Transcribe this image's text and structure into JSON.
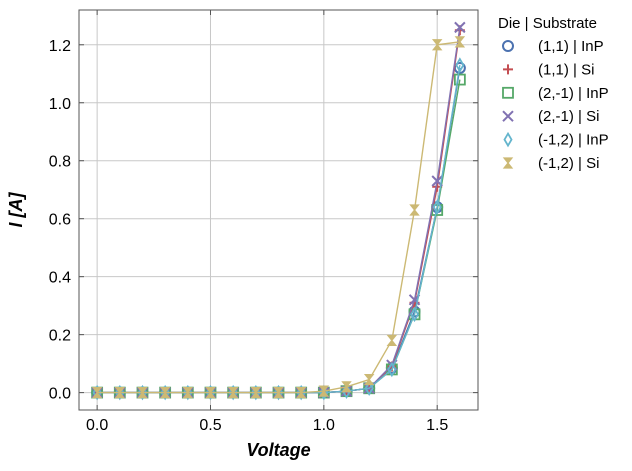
{
  "chart_data": {
    "type": "line",
    "title": "",
    "xlabel": "Voltage",
    "ylabel": "I [A]",
    "xlim": [
      -0.08,
      1.68
    ],
    "ylim": [
      -0.06,
      1.32
    ],
    "xticks": [
      0.0,
      0.5,
      1.0,
      1.5
    ],
    "xtick_labels": [
      "0.0",
      "0.5",
      "1.0",
      "1.5"
    ],
    "yticks": [
      0.0,
      0.2,
      0.4,
      0.6,
      0.8,
      1.0,
      1.2
    ],
    "ytick_labels": [
      "0.0",
      "0.2",
      "0.4",
      "0.6",
      "0.8",
      "1.0",
      "1.2"
    ],
    "grid": true,
    "legend_title": "Die | Substrate",
    "legend_position": "outside-right",
    "x": [
      0.0,
      0.1,
      0.2,
      0.3,
      0.4,
      0.5,
      0.6,
      0.7,
      0.8,
      0.9,
      1.0,
      1.1,
      1.2,
      1.3,
      1.4,
      1.5,
      1.6
    ],
    "series": [
      {
        "name": "(1,1) | InP",
        "color": "#4c72b0",
        "marker": "circle",
        "values": [
          0,
          0,
          0,
          0,
          0,
          0,
          0,
          0,
          0,
          0,
          0,
          0.005,
          0.015,
          0.085,
          0.28,
          0.64,
          1.12
        ]
      },
      {
        "name": "(1,1) | Si",
        "color": "#c44e52",
        "marker": "plus",
        "values": [
          0,
          0,
          0,
          0,
          0,
          0,
          0,
          0,
          0,
          0,
          0,
          0.005,
          0.015,
          0.09,
          0.31,
          0.71,
          1.25
        ]
      },
      {
        "name": "(2,-1) | InP",
        "color": "#55a868",
        "marker": "square",
        "values": [
          0,
          0,
          0,
          0,
          0,
          0,
          0,
          0,
          0,
          0,
          0,
          0.005,
          0.015,
          0.08,
          0.27,
          0.63,
          1.08
        ]
      },
      {
        "name": "(2,-1) | Si",
        "color": "#8172b2",
        "marker": "x",
        "values": [
          0,
          0,
          0,
          0,
          0,
          0,
          0,
          0,
          0,
          0,
          0,
          0.005,
          0.015,
          0.095,
          0.32,
          0.73,
          1.26
        ]
      },
      {
        "name": "(-1,2) | InP",
        "color": "#64b5cd",
        "marker": "thin-diamond",
        "values": [
          0,
          0,
          0,
          0,
          0,
          0,
          0,
          0,
          0,
          0,
          0,
          0.005,
          0.015,
          0.08,
          0.27,
          0.64,
          1.13
        ]
      },
      {
        "name": "(-1,2) | Si",
        "color": "#ccb974",
        "marker": "hourglass",
        "values": [
          0,
          0,
          0,
          0,
          0,
          0,
          0,
          0,
          0,
          0,
          0.005,
          0.02,
          0.045,
          0.18,
          0.63,
          1.2,
          1.21
        ]
      }
    ]
  }
}
